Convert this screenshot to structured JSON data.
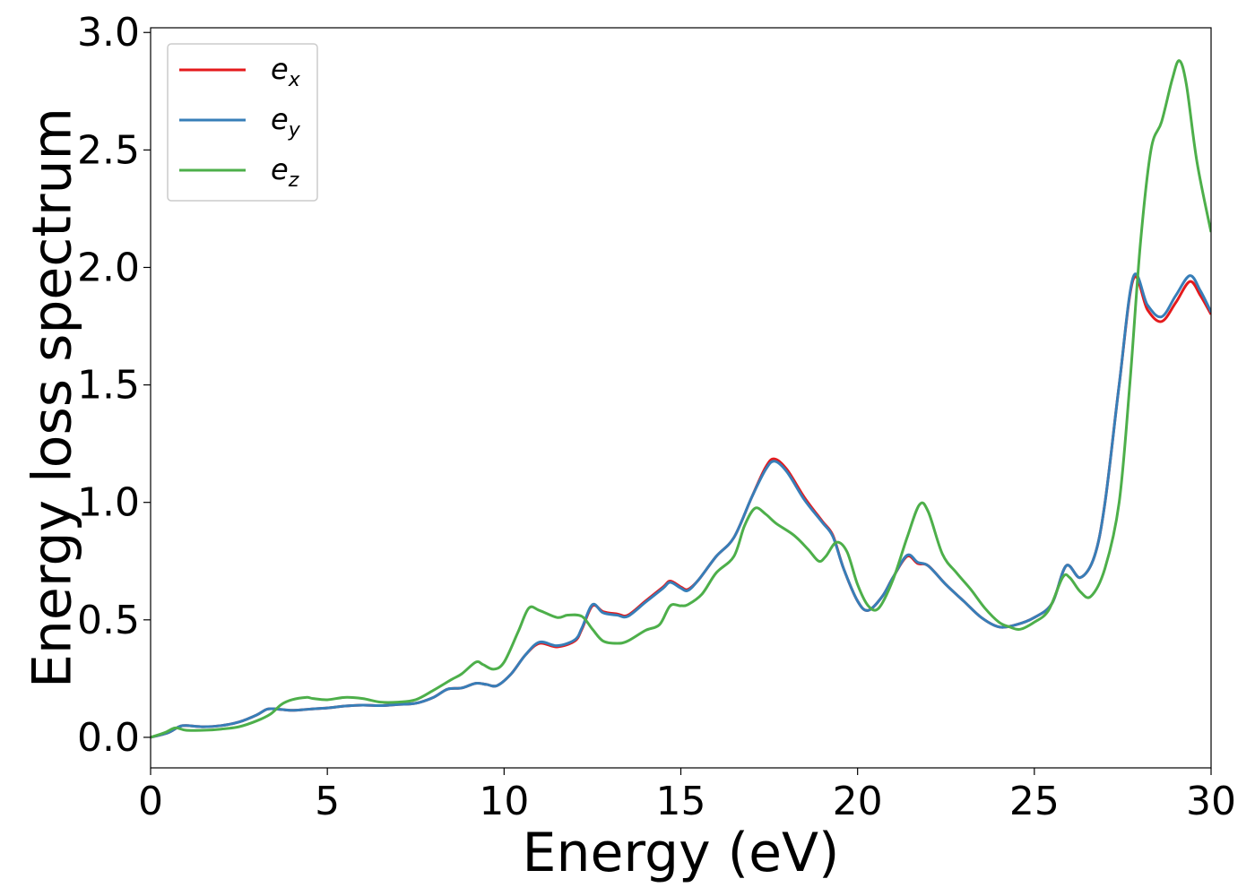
{
  "chart_data": {
    "type": "line",
    "title": "",
    "xlabel": "Energy (eV)",
    "ylabel": "Energy loss spectrum",
    "xlim": [
      0,
      30
    ],
    "ylim": [
      -0.13,
      3.02
    ],
    "xticks": [
      0,
      5,
      10,
      15,
      20,
      25,
      30
    ],
    "yticks": [
      0.0,
      0.5,
      1.0,
      1.5,
      2.0,
      2.5,
      3.0
    ],
    "xtick_labels": [
      "0",
      "5",
      "10",
      "15",
      "20",
      "25",
      "30"
    ],
    "ytick_labels": [
      "0.0",
      "0.5",
      "1.0",
      "1.5",
      "2.0",
      "2.5",
      "3.0"
    ],
    "grid": false,
    "legend_position": "top-left",
    "series": [
      {
        "name": "e_x",
        "label_base": "e",
        "label_sub": "x",
        "color": "#e41a1c",
        "points": [
          [
            0,
            0
          ],
          [
            0.5,
            0.02
          ],
          [
            0.8,
            0.045
          ],
          [
            1.0,
            0.05
          ],
          [
            1.5,
            0.045
          ],
          [
            2.0,
            0.05
          ],
          [
            2.5,
            0.065
          ],
          [
            3.0,
            0.095
          ],
          [
            3.3,
            0.12
          ],
          [
            3.6,
            0.12
          ],
          [
            4.0,
            0.115
          ],
          [
            4.5,
            0.12
          ],
          [
            5.0,
            0.125
          ],
          [
            5.5,
            0.133
          ],
          [
            6.0,
            0.137
          ],
          [
            6.5,
            0.135
          ],
          [
            7.0,
            0.14
          ],
          [
            7.5,
            0.145
          ],
          [
            8.0,
            0.17
          ],
          [
            8.4,
            0.205
          ],
          [
            8.8,
            0.21
          ],
          [
            9.2,
            0.23
          ],
          [
            9.5,
            0.225
          ],
          [
            9.8,
            0.22
          ],
          [
            10.2,
            0.27
          ],
          [
            10.6,
            0.35
          ],
          [
            11.0,
            0.4
          ],
          [
            11.5,
            0.385
          ],
          [
            12.0,
            0.41
          ],
          [
            12.2,
            0.46
          ],
          [
            12.5,
            0.56
          ],
          [
            12.8,
            0.535
          ],
          [
            13.2,
            0.525
          ],
          [
            13.5,
            0.52
          ],
          [
            14.0,
            0.58
          ],
          [
            14.5,
            0.64
          ],
          [
            14.7,
            0.665
          ],
          [
            15.0,
            0.64
          ],
          [
            15.2,
            0.63
          ],
          [
            15.5,
            0.67
          ],
          [
            16.0,
            0.77
          ],
          [
            16.5,
            0.85
          ],
          [
            17.0,
            1.02
          ],
          [
            17.4,
            1.15
          ],
          [
            17.65,
            1.185
          ],
          [
            18.0,
            1.14
          ],
          [
            18.5,
            1.02
          ],
          [
            19.0,
            0.92
          ],
          [
            19.3,
            0.86
          ],
          [
            19.6,
            0.72
          ],
          [
            20.0,
            0.58
          ],
          [
            20.3,
            0.54
          ],
          [
            20.7,
            0.6
          ],
          [
            21.0,
            0.68
          ],
          [
            21.4,
            0.77
          ],
          [
            21.7,
            0.74
          ],
          [
            22.0,
            0.73
          ],
          [
            22.5,
            0.65
          ],
          [
            23.0,
            0.58
          ],
          [
            23.5,
            0.51
          ],
          [
            24.0,
            0.47
          ],
          [
            24.5,
            0.48
          ],
          [
            25.0,
            0.51
          ],
          [
            25.5,
            0.57
          ],
          [
            25.9,
            0.73
          ],
          [
            26.3,
            0.68
          ],
          [
            26.7,
            0.77
          ],
          [
            27.0,
            1.0
          ],
          [
            27.4,
            1.5
          ],
          [
            27.8,
            1.95
          ],
          [
            28.2,
            1.82
          ],
          [
            28.6,
            1.77
          ],
          [
            29.0,
            1.85
          ],
          [
            29.4,
            1.94
          ],
          [
            29.7,
            1.88
          ],
          [
            30.0,
            1.8
          ]
        ]
      },
      {
        "name": "e_y",
        "label_base": "e",
        "label_sub": "y",
        "color": "#377eb8",
        "points": [
          [
            0,
            0
          ],
          [
            0.5,
            0.02
          ],
          [
            0.8,
            0.045
          ],
          [
            1.0,
            0.05
          ],
          [
            1.5,
            0.045
          ],
          [
            2.0,
            0.05
          ],
          [
            2.5,
            0.065
          ],
          [
            3.0,
            0.095
          ],
          [
            3.3,
            0.12
          ],
          [
            3.6,
            0.12
          ],
          [
            4.0,
            0.115
          ],
          [
            4.5,
            0.12
          ],
          [
            5.0,
            0.125
          ],
          [
            5.5,
            0.133
          ],
          [
            6.0,
            0.137
          ],
          [
            6.5,
            0.135
          ],
          [
            7.0,
            0.14
          ],
          [
            7.5,
            0.145
          ],
          [
            8.0,
            0.17
          ],
          [
            8.4,
            0.205
          ],
          [
            8.8,
            0.21
          ],
          [
            9.2,
            0.23
          ],
          [
            9.5,
            0.225
          ],
          [
            9.8,
            0.22
          ],
          [
            10.2,
            0.27
          ],
          [
            10.6,
            0.35
          ],
          [
            11.0,
            0.405
          ],
          [
            11.5,
            0.39
          ],
          [
            12.0,
            0.415
          ],
          [
            12.2,
            0.465
          ],
          [
            12.5,
            0.565
          ],
          [
            12.8,
            0.53
          ],
          [
            13.2,
            0.52
          ],
          [
            13.5,
            0.515
          ],
          [
            14.0,
            0.575
          ],
          [
            14.5,
            0.635
          ],
          [
            14.7,
            0.66
          ],
          [
            15.0,
            0.635
          ],
          [
            15.2,
            0.625
          ],
          [
            15.5,
            0.67
          ],
          [
            16.0,
            0.77
          ],
          [
            16.5,
            0.85
          ],
          [
            17.0,
            1.02
          ],
          [
            17.4,
            1.14
          ],
          [
            17.65,
            1.175
          ],
          [
            18.0,
            1.13
          ],
          [
            18.5,
            1.01
          ],
          [
            19.0,
            0.915
          ],
          [
            19.3,
            0.855
          ],
          [
            19.6,
            0.72
          ],
          [
            20.0,
            0.58
          ],
          [
            20.3,
            0.54
          ],
          [
            20.7,
            0.6
          ],
          [
            21.0,
            0.68
          ],
          [
            21.4,
            0.775
          ],
          [
            21.7,
            0.745
          ],
          [
            22.0,
            0.73
          ],
          [
            22.5,
            0.65
          ],
          [
            23.0,
            0.58
          ],
          [
            23.5,
            0.51
          ],
          [
            24.0,
            0.47
          ],
          [
            24.5,
            0.48
          ],
          [
            25.0,
            0.51
          ],
          [
            25.5,
            0.57
          ],
          [
            25.9,
            0.73
          ],
          [
            26.3,
            0.68
          ],
          [
            26.7,
            0.77
          ],
          [
            27.0,
            1.0
          ],
          [
            27.4,
            1.5
          ],
          [
            27.8,
            1.96
          ],
          [
            28.2,
            1.84
          ],
          [
            28.6,
            1.79
          ],
          [
            29.0,
            1.88
          ],
          [
            29.4,
            1.965
          ],
          [
            29.7,
            1.9
          ],
          [
            30.0,
            1.81
          ]
        ]
      },
      {
        "name": "e_z",
        "label_base": "e",
        "label_sub": "z",
        "color": "#4daf4a",
        "points": [
          [
            0,
            0
          ],
          [
            0.4,
            0.02
          ],
          [
            0.7,
            0.04
          ],
          [
            1.0,
            0.03
          ],
          [
            1.5,
            0.03
          ],
          [
            2.0,
            0.035
          ],
          [
            2.5,
            0.045
          ],
          [
            3.0,
            0.07
          ],
          [
            3.4,
            0.1
          ],
          [
            3.7,
            0.14
          ],
          [
            4.0,
            0.16
          ],
          [
            4.4,
            0.17
          ],
          [
            4.6,
            0.165
          ],
          [
            5.0,
            0.16
          ],
          [
            5.5,
            0.17
          ],
          [
            6.0,
            0.165
          ],
          [
            6.5,
            0.15
          ],
          [
            7.0,
            0.15
          ],
          [
            7.5,
            0.16
          ],
          [
            8.0,
            0.2
          ],
          [
            8.5,
            0.245
          ],
          [
            8.8,
            0.27
          ],
          [
            9.2,
            0.32
          ],
          [
            9.4,
            0.31
          ],
          [
            9.7,
            0.29
          ],
          [
            10.0,
            0.32
          ],
          [
            10.4,
            0.45
          ],
          [
            10.7,
            0.55
          ],
          [
            11.0,
            0.54
          ],
          [
            11.5,
            0.51
          ],
          [
            11.8,
            0.52
          ],
          [
            12.2,
            0.515
          ],
          [
            12.5,
            0.46
          ],
          [
            12.8,
            0.41
          ],
          [
            13.2,
            0.4
          ],
          [
            13.5,
            0.41
          ],
          [
            14.0,
            0.455
          ],
          [
            14.4,
            0.48
          ],
          [
            14.7,
            0.56
          ],
          [
            15.0,
            0.56
          ],
          [
            15.2,
            0.565
          ],
          [
            15.6,
            0.61
          ],
          [
            16.0,
            0.7
          ],
          [
            16.5,
            0.77
          ],
          [
            16.8,
            0.9
          ],
          [
            17.1,
            0.975
          ],
          [
            17.4,
            0.95
          ],
          [
            17.7,
            0.91
          ],
          [
            18.2,
            0.86
          ],
          [
            18.6,
            0.8
          ],
          [
            18.9,
            0.75
          ],
          [
            19.1,
            0.77
          ],
          [
            19.4,
            0.83
          ],
          [
            19.7,
            0.79
          ],
          [
            20.0,
            0.65
          ],
          [
            20.3,
            0.56
          ],
          [
            20.6,
            0.55
          ],
          [
            21.0,
            0.67
          ],
          [
            21.4,
            0.85
          ],
          [
            21.75,
            0.99
          ],
          [
            22.0,
            0.96
          ],
          [
            22.4,
            0.78
          ],
          [
            22.8,
            0.7
          ],
          [
            23.2,
            0.63
          ],
          [
            23.6,
            0.55
          ],
          [
            24.0,
            0.49
          ],
          [
            24.3,
            0.47
          ],
          [
            24.6,
            0.46
          ],
          [
            25.0,
            0.49
          ],
          [
            25.4,
            0.54
          ],
          [
            25.8,
            0.68
          ],
          [
            26.0,
            0.68
          ],
          [
            26.3,
            0.62
          ],
          [
            26.6,
            0.6
          ],
          [
            27.0,
            0.72
          ],
          [
            27.4,
            1.0
          ],
          [
            27.7,
            1.5
          ],
          [
            28.0,
            2.1
          ],
          [
            28.3,
            2.5
          ],
          [
            28.6,
            2.62
          ],
          [
            28.9,
            2.8
          ],
          [
            29.1,
            2.88
          ],
          [
            29.3,
            2.78
          ],
          [
            29.6,
            2.45
          ],
          [
            30.0,
            2.15
          ]
        ]
      }
    ]
  }
}
